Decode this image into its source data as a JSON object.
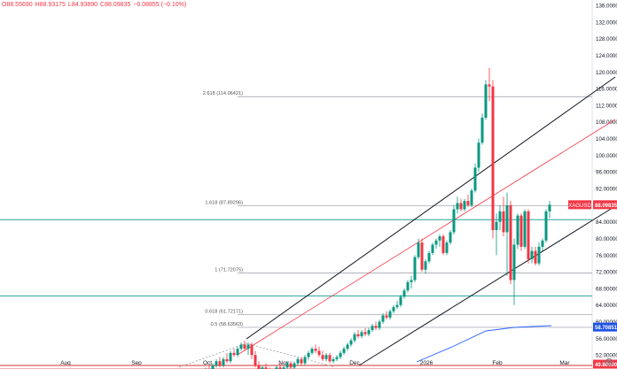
{
  "header": {
    "open": "O88.55690",
    "high": "H88.93175",
    "low": "L84.93890",
    "close": "C88.09835",
    "change": "−0.08855 (−0.10%)"
  },
  "chart_data": {
    "type": "candlestick",
    "symbol": "XAGUSD",
    "last_price": "88.09835",
    "x_labels": [
      "Aug",
      "Sep",
      "Oct",
      "Nov",
      "Dec",
      "2026",
      "Feb",
      "Mar"
    ],
    "y_ticks": [
      "136.00000",
      "132.00000",
      "128.00000",
      "124.00000",
      "120.00000",
      "116.00000",
      "112.00000",
      "108.00000",
      "104.00000",
      "100.00000",
      "96.00000",
      "92.00000",
      "88.00000",
      "84.00000",
      "80.00000",
      "76.00000",
      "72.00000",
      "68.00000",
      "64.00000",
      "60.00000",
      "56.00000",
      "52.00000",
      "48.00000"
    ],
    "ylim": [
      44,
      138
    ],
    "fib_levels": [
      {
        "label": "2.618 (114.06421)",
        "value": 114.06
      },
      {
        "label": "1.618 (87.89296)",
        "value": 87.89
      },
      {
        "label": "1 (71.72075)",
        "value": 71.72
      },
      {
        "label": "0.618 (61.72171)",
        "value": 61.72
      },
      {
        "label": "0.5 (58.63563)",
        "value": 58.64
      },
      {
        "label": "0 (45.35090)",
        "value": 45.35
      }
    ],
    "horizontal_lines": [
      {
        "value": 84.5,
        "color": "#26a69a"
      },
      {
        "value": 66.2,
        "color": "#26a69a"
      },
      {
        "value": 49.5,
        "color": "#d32f2f"
      },
      {
        "value": 48.6,
        "color": "#d32f2f"
      }
    ],
    "price_badges": [
      {
        "label": "XAGUSD",
        "value": "88.09835",
        "color": "#f23645"
      },
      {
        "label": "",
        "value": "58.70851",
        "color": "#1e53e5"
      },
      {
        "label": "",
        "value": "49.80000",
        "color": "#f23645"
      }
    ],
    "channel": {
      "upper": [
        [
          278,
          383
        ],
        [
          694,
          87
        ]
      ],
      "middle": [
        [
          268,
          401
        ],
        [
          694,
          135
        ]
      ],
      "lower": [
        [
          405,
          413
        ],
        [
          694,
          233
        ]
      ]
    },
    "moving_average": [
      [
        470,
        409
      ],
      [
        510,
        392
      ],
      [
        548,
        374
      ],
      [
        580,
        370
      ],
      [
        622,
        368
      ]
    ],
    "triangle_dashed": [
      [
        202,
        415
      ],
      [
        278,
        388
      ],
      [
        378,
        415
      ]
    ],
    "candles": [
      [
        220,
        46,
        47,
        45,
        46.5
      ],
      [
        224,
        46.5,
        47.5,
        46,
        47
      ],
      [
        228,
        47,
        48,
        46.5,
        47.5
      ],
      [
        232,
        47.5,
        49,
        47,
        48.5
      ],
      [
        236,
        48.5,
        49.5,
        47.5,
        48
      ],
      [
        240,
        48,
        50,
        47.5,
        49.5
      ],
      [
        244,
        49.5,
        51,
        49,
        50.5
      ],
      [
        248,
        50.5,
        51.5,
        49,
        49.5
      ],
      [
        252,
        49.5,
        51.5,
        49,
        51
      ],
      [
        256,
        51,
        52.5,
        50,
        50.5
      ],
      [
        260,
        50.5,
        53,
        50,
        52.5
      ],
      [
        264,
        52.5,
        53.5,
        51.5,
        52
      ],
      [
        268,
        52,
        54,
        51.5,
        53.5
      ],
      [
        272,
        53.5,
        55,
        53,
        54.5
      ],
      [
        276,
        54.5,
        55.5,
        53,
        53.5
      ],
      [
        280,
        53.5,
        55,
        52,
        54.5
      ],
      [
        284,
        54.5,
        55,
        51,
        52
      ],
      [
        288,
        52,
        53,
        49,
        49.5
      ],
      [
        292,
        49.5,
        50.5,
        47,
        48
      ],
      [
        296,
        48,
        49.5,
        47.5,
        49
      ],
      [
        300,
        49,
        50,
        47.5,
        48
      ],
      [
        304,
        48,
        49,
        46,
        46.5
      ],
      [
        308,
        46.5,
        48,
        46,
        47.5
      ],
      [
        312,
        47.5,
        49.5,
        47,
        49
      ],
      [
        316,
        49,
        50,
        48,
        48.5
      ],
      [
        320,
        48.5,
        49.5,
        47.5,
        49
      ],
      [
        324,
        49,
        50.5,
        48.5,
        50
      ],
      [
        328,
        50,
        50.5,
        48.5,
        49
      ],
      [
        332,
        49,
        50.5,
        48.5,
        50
      ],
      [
        336,
        50,
        51.5,
        49.5,
        51
      ],
      [
        340,
        51,
        51.5,
        49.5,
        50
      ],
      [
        344,
        50,
        52,
        49.5,
        51.5
      ],
      [
        348,
        51.5,
        53,
        51,
        52.5
      ],
      [
        352,
        52.5,
        54,
        52,
        53.5
      ],
      [
        356,
        53.5,
        54.5,
        52.5,
        53
      ],
      [
        360,
        53,
        54,
        51.5,
        52
      ],
      [
        364,
        52,
        53,
        50.5,
        51
      ],
      [
        368,
        51,
        52.5,
        50.5,
        52
      ],
      [
        372,
        52,
        52.5,
        50,
        50.5
      ],
      [
        376,
        50.5,
        51.5,
        50,
        51
      ],
      [
        380,
        51,
        52,
        50.5,
        51.5
      ],
      [
        384,
        51.5,
        53,
        51,
        52.5
      ],
      [
        388,
        52.5,
        54,
        52,
        53.5
      ],
      [
        392,
        53.5,
        55,
        53,
        54.5
      ],
      [
        396,
        54.5,
        56,
        54,
        55.5
      ],
      [
        400,
        55.5,
        57.5,
        55,
        57
      ],
      [
        404,
        57,
        58,
        56,
        56.5
      ],
      [
        408,
        56.5,
        58,
        56,
        57.5
      ],
      [
        412,
        57.5,
        58.5,
        56.5,
        57
      ],
      [
        416,
        57,
        58.5,
        56.5,
        58
      ],
      [
        420,
        58,
        59.5,
        57.5,
        59
      ],
      [
        424,
        59,
        60,
        58,
        58.5
      ],
      [
        428,
        58.5,
        60.5,
        58,
        60
      ],
      [
        432,
        60,
        62,
        59.5,
        61.5
      ],
      [
        436,
        61.5,
        62.5,
        60.5,
        61
      ],
      [
        440,
        61,
        63,
        60.5,
        62.5
      ],
      [
        444,
        62.5,
        64,
        62,
        63.5
      ],
      [
        448,
        63.5,
        65,
        63,
        64
      ],
      [
        452,
        64,
        66.5,
        63.5,
        66
      ],
      [
        456,
        66,
        68,
        65.5,
        67.5
      ],
      [
        460,
        67.5,
        70,
        67,
        69.5
      ],
      [
        464,
        69.5,
        71,
        68,
        70
      ],
      [
        468,
        70,
        76,
        69.5,
        75.5
      ],
      [
        472,
        75.5,
        80,
        75,
        79
      ],
      [
        476,
        79,
        80,
        72,
        72.5
      ],
      [
        480,
        72.5,
        75,
        71.5,
        74.5
      ],
      [
        484,
        74.5,
        77,
        74,
        76.5
      ],
      [
        488,
        76.5,
        79,
        76,
        78.5
      ],
      [
        492,
        78.5,
        80,
        77.5,
        79.5
      ],
      [
        496,
        79.5,
        81,
        78,
        80.5
      ],
      [
        500,
        80.5,
        81,
        76,
        76.5
      ],
      [
        504,
        76.5,
        79.5,
        76,
        79
      ],
      [
        508,
        79,
        82,
        78.5,
        81.5
      ],
      [
        512,
        81.5,
        88,
        81,
        87
      ],
      [
        516,
        87,
        90,
        86,
        88.5
      ],
      [
        520,
        88.5,
        89.5,
        86.5,
        87
      ],
      [
        524,
        87,
        89.5,
        86.5,
        89
      ],
      [
        528,
        89,
        90.5,
        87.5,
        88
      ],
      [
        532,
        88,
        92,
        87.5,
        91.5
      ],
      [
        536,
        91.5,
        98,
        91,
        97
      ],
      [
        540,
        97,
        104,
        96,
        103
      ],
      [
        544,
        103,
        110,
        102.5,
        109
      ],
      [
        548,
        109,
        118,
        108.5,
        117
      ],
      [
        552,
        117,
        121,
        113,
        116.5
      ],
      [
        556,
        116.5,
        118,
        80,
        82
      ],
      [
        560,
        82,
        86,
        76,
        84
      ],
      [
        564,
        84,
        88,
        82,
        86.5
      ],
      [
        568,
        86.5,
        90,
        80.5,
        81.5
      ],
      [
        572,
        81.5,
        91,
        71,
        88
      ],
      [
        576,
        88,
        89,
        69,
        70
      ],
      [
        580,
        70,
        80,
        64,
        78.5
      ],
      [
        584,
        78.5,
        86,
        77.5,
        85.5
      ],
      [
        588,
        85.5,
        86,
        77,
        78
      ],
      [
        592,
        78,
        87,
        77.5,
        86.5
      ],
      [
        596,
        86.5,
        87,
        74,
        75
      ],
      [
        600,
        75,
        78,
        74,
        77
      ],
      [
        604,
        77,
        78,
        73.5,
        74
      ],
      [
        608,
        74,
        79,
        73.5,
        78
      ],
      [
        612,
        78,
        80,
        77,
        79.5
      ],
      [
        616,
        79.5,
        87,
        79,
        86.5
      ],
      [
        620,
        86.5,
        89,
        84.9,
        88.1
      ]
    ]
  }
}
